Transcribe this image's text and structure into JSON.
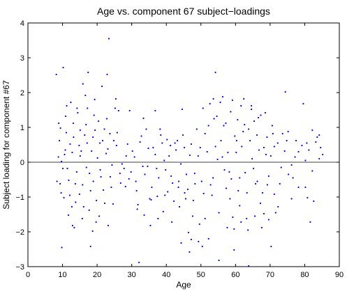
{
  "chart_data": {
    "type": "scatter",
    "title": "Age vs. component 67 subject−loadings",
    "xlabel": "Age",
    "ylabel": "Subject loading for component #67",
    "xlim": [
      0,
      90
    ],
    "ylim": [
      -3,
      4
    ],
    "xticks": [
      "0",
      "10",
      "20",
      "30",
      "40",
      "50",
      "60",
      "70",
      "80",
      "90"
    ],
    "yticks": [
      "−3",
      "−2",
      "−1",
      "0",
      "1",
      "2",
      "3",
      "4"
    ],
    "grid": false,
    "reference_line_y": 0,
    "marker_color": "#0000ff",
    "series": [
      {
        "points": [
          [
            8.2,
            2.52
          ],
          [
            8.9,
            1.12
          ],
          [
            9.4,
            0.98
          ],
          [
            9.8,
            -2.45
          ],
          [
            10.2,
            2.72
          ],
          [
            10.6,
            0.22
          ],
          [
            11.2,
            1.62
          ],
          [
            11.7,
            -1.52
          ],
          [
            12.4,
            1.72
          ],
          [
            12.9,
            -1.82
          ],
          [
            13.4,
            -1.88
          ],
          [
            14.2,
            1.55
          ],
          [
            15.1,
            0.92
          ],
          [
            15.9,
            2.25
          ],
          [
            16.6,
            1.92
          ],
          [
            17.4,
            2.58
          ],
          [
            18.1,
            -2.42
          ],
          [
            18.7,
            -1.98
          ],
          [
            19.3,
            1.8
          ],
          [
            20.6,
            -1.55
          ],
          [
            21.4,
            2.18
          ],
          [
            22.9,
            2.52
          ],
          [
            23.4,
            3.55
          ],
          [
            23.2,
            -1.82
          ],
          [
            24.6,
            -1.2
          ],
          [
            25.2,
            1.55
          ],
          [
            25.4,
            1.82
          ],
          [
            26.2,
            1.48
          ],
          [
            28.2,
            -0.7
          ],
          [
            29.4,
            1.48
          ],
          [
            31.2,
            -0.55
          ],
          [
            32.1,
            -2.88
          ],
          [
            33.4,
            1.26
          ],
          [
            34.6,
            -0.12
          ],
          [
            35.4,
            -1.82
          ],
          [
            36.8,
            1.48
          ],
          [
            37.4,
            -0.98
          ],
          [
            38.2,
            0.95
          ],
          [
            39.1,
            -1.42
          ],
          [
            40.2,
            0.65
          ],
          [
            41.4,
            -0.4
          ],
          [
            42.5,
            0.55
          ],
          [
            43.5,
            -0.72
          ],
          [
            44.3,
            -2.32
          ],
          [
            44.6,
            1.52
          ],
          [
            45.3,
            -0.88
          ],
          [
            46.4,
            -2.02
          ],
          [
            46.7,
            -2.58
          ],
          [
            47.2,
            -2.22
          ],
          [
            48.3,
            -0.62
          ],
          [
            49.3,
            -2.28
          ],
          [
            50.4,
            -2.42
          ],
          [
            51.2,
            0.82
          ],
          [
            52.2,
            -2.2
          ],
          [
            53.5,
            -0.45
          ],
          [
            54.2,
            2.58
          ],
          [
            55.2,
            -2.82
          ],
          [
            56.3,
            1.88
          ],
          [
            57.3,
            -0.75
          ],
          [
            58.4,
            -1.05
          ],
          [
            59.1,
            1.78
          ],
          [
            59.6,
            -2.52
          ],
          [
            60.3,
            0.62
          ],
          [
            61.2,
            -1.25
          ],
          [
            62.4,
            1.82
          ],
          [
            63.3,
            -0.88
          ],
          [
            63.8,
            -2.98
          ],
          [
            64.6,
            1.62
          ],
          [
            65.4,
            1.18
          ],
          [
            66.3,
            -0.55
          ],
          [
            67.3,
            1.35
          ],
          [
            68.2,
            -1.48
          ],
          [
            69.1,
            0.72
          ],
          [
            70.3,
            -2.42
          ],
          [
            71.2,
            0.45
          ],
          [
            72.3,
            -1.28
          ],
          [
            73.6,
            0.82
          ],
          [
            74.4,
            2.02
          ],
          [
            75.3,
            -0.35
          ],
          [
            76.6,
            -0.45
          ],
          [
            77.5,
            0.62
          ],
          [
            79.6,
            1.68
          ],
          [
            80.2,
            -0.72
          ],
          [
            80.8,
            -1.02
          ],
          [
            81.6,
            -1.72
          ],
          [
            82.6,
            -1.12
          ],
          [
            83.6,
            0.72
          ],
          [
            84.6,
            0.42
          ],
          [
            85.2,
            0.22
          ],
          [
            84.2,
            0.78
          ],
          [
            82.2,
            0.92
          ],
          [
            80.6,
            0.55
          ],
          [
            78.2,
            0.3
          ],
          [
            76.2,
            -0.08
          ],
          [
            74.8,
            0.62
          ],
          [
            72.8,
            -0.62
          ],
          [
            70.8,
            0.82
          ],
          [
            69.6,
            -0.4
          ],
          [
            68.8,
            0.22
          ],
          [
            67.8,
            -0.88
          ],
          [
            66.8,
            0.35
          ],
          [
            65.8,
            -0.62
          ],
          [
            64.8,
            0.1
          ],
          [
            63.8,
            0.95
          ],
          [
            62.8,
            -0.3
          ],
          [
            61.8,
            0.45
          ],
          [
            60.8,
            -0.82
          ],
          [
            59.8,
            0.75
          ],
          [
            58.8,
            -0.48
          ],
          [
            57.8,
            0.28
          ],
          [
            56.8,
            -0.22
          ],
          [
            55.8,
            0.62
          ],
          [
            54.8,
            0.08
          ],
          [
            53.8,
            1.25
          ],
          [
            52.8,
            -0.65
          ],
          [
            51.8,
            0.3
          ],
          [
            50.8,
            -0.9
          ],
          [
            49.8,
            0.42
          ],
          [
            48.8,
            0.95
          ],
          [
            47.8,
            -1.1
          ],
          [
            46.8,
            0.2
          ],
          [
            45.8,
            -0.35
          ],
          [
            44.8,
            0.78
          ],
          [
            43.8,
            -1.28
          ],
          [
            42.8,
            0.35
          ],
          [
            41.8,
            -0.6
          ],
          [
            40.8,
            0.18
          ],
          [
            39.8,
            -0.22
          ],
          [
            38.8,
            0.55
          ],
          [
            37.8,
            -0.45
          ],
          [
            36.8,
            0.22
          ],
          [
            35.8,
            -0.72
          ],
          [
            34.8,
            0.4
          ],
          [
            33.8,
            -0.35
          ],
          [
            32.8,
            0.75
          ],
          [
            31.8,
            -1.22
          ],
          [
            30.8,
            0.15
          ],
          [
            29.8,
            -0.28
          ],
          [
            28.8,
            0.52
          ],
          [
            27.8,
            -0.18
          ],
          [
            26.8,
            -0.6
          ],
          [
            25.8,
            0.85
          ],
          [
            24.8,
            0.62
          ],
          [
            23.8,
            -0.42
          ],
          [
            22.8,
            1.25
          ],
          [
            21.8,
            -0.8
          ],
          [
            20.8,
            0.55
          ],
          [
            19.8,
            -1.1
          ],
          [
            18.8,
            0.72
          ],
          [
            17.8,
            -0.32
          ],
          [
            16.8,
            1.08
          ],
          [
            15.8,
            -0.65
          ],
          [
            14.8,
            0.48
          ],
          [
            13.8,
            -1.15
          ],
          [
            12.8,
            0.28
          ],
          [
            11.8,
            -0.52
          ],
          [
            10.8,
            0.35
          ],
          [
            9.6,
            -0.88
          ],
          [
            8.8,
            0.15
          ],
          [
            8.4,
            -0.55
          ],
          [
            9.1,
            0.62
          ],
          [
            10.1,
            -0.18
          ],
          [
            11.1,
            0.85
          ],
          [
            12.1,
            -0.95
          ],
          [
            13.1,
            1.12
          ],
          [
            14.1,
            -0.28
          ],
          [
            15.1,
            0.18
          ],
          [
            16.1,
            -1.28
          ],
          [
            17.1,
            0.55
          ],
          [
            18.1,
            -0.82
          ],
          [
            19.1,
            1.35
          ],
          [
            20.1,
            0.12
          ],
          [
            21.1,
            -0.42
          ],
          [
            22.1,
            0.95
          ],
          [
            23.1,
            0.38
          ],
          [
            24.1,
            -0.72
          ],
          [
            9.3,
            -0.62
          ],
          [
            9.7,
            0.02
          ],
          [
            10.4,
            -1.02
          ],
          [
            10.9,
            1.32
          ],
          [
            11.4,
            -0.18
          ],
          [
            12.2,
            0.52
          ],
          [
            12.7,
            -1.28
          ],
          [
            13.2,
            0.72
          ],
          [
            13.7,
            -0.62
          ],
          [
            14.4,
            1.42
          ],
          [
            14.9,
            -0.92
          ],
          [
            15.4,
            0.32
          ],
          [
            15.7,
            -1.62
          ],
          [
            16.4,
            0.78
          ],
          [
            16.9,
            -0.15
          ],
          [
            17.2,
            1.55
          ],
          [
            17.7,
            -1.38
          ],
          [
            18.4,
            0.32
          ],
          [
            18.9,
            -0.55
          ],
          [
            19.4,
            0.92
          ],
          [
            19.7,
            -1.72
          ],
          [
            20.4,
            1.18
          ],
          [
            20.9,
            -0.22
          ],
          [
            21.6,
            0.62
          ],
          [
            22.2,
            -1.18
          ],
          [
            22.6,
            0.25
          ],
          [
            23.7,
            0.82
          ],
          [
            24.3,
            -0.08
          ],
          [
            25.6,
            0.48
          ],
          [
            26.6,
            -0.32
          ],
          [
            27.2,
            -0.05
          ],
          [
            28.4,
            0.18
          ],
          [
            29.2,
            -0.48
          ],
          [
            30.2,
            0.32
          ],
          [
            31.4,
            -0.82
          ],
          [
            32.4,
            0.58
          ],
          [
            33.2,
            -0.12
          ],
          [
            34.2,
            0.95
          ],
          [
            35.2,
            -1.05
          ],
          [
            36.2,
            0.42
          ],
          [
            37.2,
            -0.18
          ],
          [
            38.4,
            0.78
          ],
          [
            39.4,
            0.05
          ],
          [
            40.4,
            -0.85
          ],
          [
            41.2,
            0.48
          ],
          [
            42.2,
            -1.12
          ],
          [
            43.2,
            0.62
          ],
          [
            44.2,
            -0.05
          ],
          [
            45.2,
            0.42
          ],
          [
            46.2,
            -0.78
          ],
          [
            47.2,
            0.52
          ],
          [
            48.2,
            -0.32
          ],
          [
            49.2,
            0.18
          ],
          [
            50.2,
            -0.55
          ],
          [
            51.2,
            -1.62
          ],
          [
            52.2,
            1.05
          ],
          [
            53.2,
            -0.95
          ],
          [
            54.2,
            0.45
          ],
          [
            55.2,
            -1.45
          ],
          [
            56.2,
            0.15
          ],
          [
            57.2,
            1.12
          ],
          [
            58.2,
            -0.28
          ],
          [
            59.2,
            -1.58
          ],
          [
            60.2,
            0.28
          ],
          [
            61.2,
            -0.45
          ],
          [
            62.2,
            0.88
          ],
          [
            63.2,
            -1.62
          ],
          [
            64.2,
            0.62
          ],
          [
            65.2,
            -0.18
          ],
          [
            66.2,
            0.78
          ],
          [
            67.2,
            -1.18
          ],
          [
            68.2,
            0.42
          ],
          [
            69.2,
            -0.65
          ],
          [
            70.2,
            0.18
          ],
          [
            71.2,
            -0.92
          ],
          [
            72.2,
            0.55
          ],
          [
            73.2,
            -0.15
          ],
          [
            74.2,
            0.32
          ],
          [
            75.2,
            0.88
          ],
          [
            76.2,
            -1.05
          ],
          [
            77.2,
            0.15
          ],
          [
            78.2,
            -0.72
          ],
          [
            79.2,
            0.48
          ],
          [
            80.2,
            0.05
          ],
          [
            81.2,
            0.35
          ],
          [
            82.2,
            -0.25
          ],
          [
            83.2,
            0.58
          ],
          [
            84.2,
            0.1
          ],
          [
            50.6,
            1.55
          ],
          [
            52.6,
            1.68
          ],
          [
            54.6,
            1.32
          ],
          [
            56.6,
            1.05
          ],
          [
            58.6,
            1.45
          ],
          [
            60.6,
            1.22
          ],
          [
            62.6,
            1.08
          ],
          [
            64.6,
            1.52
          ],
          [
            66.6,
            1.28
          ],
          [
            68.6,
            1.42
          ],
          [
            70.6,
            1.05
          ],
          [
            61.6,
            1.62
          ],
          [
            55.6,
            1.72
          ],
          [
            53.6,
            1.82
          ],
          [
            57.6,
            -1.88
          ],
          [
            59.6,
            -1.92
          ],
          [
            61.6,
            -1.72
          ],
          [
            63.6,
            -1.95
          ],
          [
            65.6,
            -1.55
          ],
          [
            67.6,
            -1.88
          ],
          [
            69.6,
            -1.65
          ],
          [
            71.6,
            -1.45
          ],
          [
            49.6,
            -1.78
          ],
          [
            47.6,
            -1.55
          ],
          [
            45.6,
            -1.05
          ],
          [
            43.6,
            -0.55
          ],
          [
            41.6,
            -1.72
          ],
          [
            39.6,
            -0.95
          ],
          [
            37.6,
            -1.62
          ],
          [
            35.6,
            -1.08
          ],
          [
            33.6,
            -1.52
          ],
          [
            31.6,
            -1.35
          ]
        ]
      }
    ]
  }
}
